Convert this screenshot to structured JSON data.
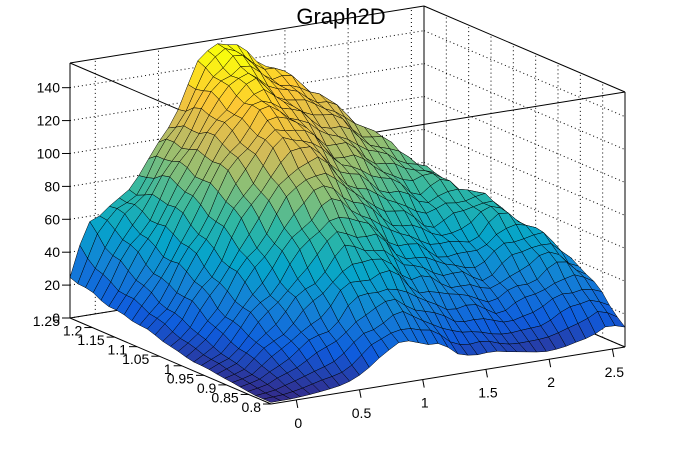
{
  "chart_data": {
    "type": "surface",
    "title": "Graph2D",
    "x_range": [
      -0.2,
      2.6
    ],
    "y_range": [
      0.8,
      1.25
    ],
    "z_range": [
      0,
      155
    ],
    "x_ticks": [
      0,
      0.5,
      1,
      1.5,
      2,
      2.5
    ],
    "y_ticks": [
      0.8,
      0.85,
      0.9,
      0.95,
      1,
      1.05,
      1.1,
      1.15,
      1.2,
      1.25
    ],
    "z_ticks": [
      0,
      20,
      40,
      60,
      80,
      100,
      120,
      140
    ],
    "x_tick_labels": [
      "0",
      "0.5",
      "1",
      "1.5",
      "2",
      "2.5"
    ],
    "y_tick_labels": [
      "0.8",
      "0.85",
      "0.9",
      "0.95",
      "1",
      "1.05",
      "1.1",
      "1.15",
      "1.2",
      "1.25"
    ],
    "z_tick_labels": [
      "0",
      "20",
      "40",
      "60",
      "80",
      "100",
      "120",
      "140"
    ],
    "grid": true,
    "colormap": "parula-like (blue → teal → green → yellow)",
    "colors": [
      "#352a87",
      "#0f5cdd",
      "#1481d6",
      "#06a4ca",
      "#2eb7a4",
      "#87bf77",
      "#d1bb59",
      "#fec832",
      "#f9fb0e"
    ],
    "mesh_line_color": "#000000",
    "grid_z": [
      [
        1,
        1,
        2,
        3,
        5,
        10,
        20,
        24,
        24,
        20,
        12,
        10,
        10,
        8,
        6,
        5,
        6,
        10,
        14,
        12
      ],
      [
        1,
        2,
        5,
        8,
        12,
        18,
        28,
        34,
        34,
        30,
        22,
        18,
        16,
        14,
        12,
        14,
        18,
        22,
        26,
        20
      ],
      [
        2,
        4,
        10,
        16,
        22,
        28,
        38,
        44,
        44,
        40,
        32,
        28,
        26,
        24,
        20,
        24,
        28,
        32,
        36,
        28
      ],
      [
        3,
        6,
        14,
        22,
        30,
        38,
        50,
        56,
        56,
        52,
        42,
        38,
        36,
        32,
        28,
        32,
        38,
        42,
        44,
        36
      ],
      [
        4,
        8,
        18,
        28,
        38,
        48,
        60,
        68,
        66,
        62,
        52,
        48,
        44,
        40,
        36,
        40,
        46,
        52,
        50,
        40
      ],
      [
        5,
        10,
        22,
        34,
        46,
        58,
        72,
        80,
        78,
        72,
        62,
        56,
        52,
        48,
        44,
        48,
        56,
        60,
        54,
        42
      ],
      [
        6,
        12,
        26,
        40,
        54,
        68,
        82,
        92,
        90,
        82,
        72,
        66,
        60,
        56,
        52,
        56,
        64,
        66,
        56,
        42
      ],
      [
        8,
        16,
        30,
        46,
        62,
        78,
        92,
        104,
        102,
        92,
        82,
        76,
        70,
        64,
        60,
        64,
        70,
        68,
        56,
        40
      ],
      [
        10,
        20,
        36,
        52,
        70,
        88,
        102,
        114,
        112,
        102,
        92,
        86,
        80,
        74,
        68,
        72,
        74,
        68,
        52,
        36
      ],
      [
        12,
        24,
        40,
        58,
        78,
        96,
        110,
        122,
        120,
        110,
        100,
        96,
        90,
        82,
        76,
        78,
        76,
        64,
        48,
        30
      ],
      [
        14,
        26,
        44,
        62,
        84,
        102,
        116,
        128,
        126,
        118,
        108,
        104,
        98,
        90,
        84,
        84,
        76,
        60,
        42,
        26
      ],
      [
        16,
        30,
        48,
        66,
        88,
        106,
        120,
        132,
        132,
        124,
        116,
        112,
        106,
        98,
        92,
        88,
        74,
        56,
        36,
        22
      ],
      [
        18,
        34,
        52,
        70,
        90,
        108,
        122,
        136,
        138,
        130,
        122,
        120,
        114,
        106,
        98,
        90,
        70,
        50,
        30,
        18
      ],
      [
        20,
        40,
        56,
        72,
        90,
        108,
        124,
        140,
        144,
        136,
        128,
        126,
        120,
        110,
        100,
        88,
        64,
        42,
        24,
        14
      ],
      [
        22,
        48,
        60,
        72,
        88,
        106,
        124,
        142,
        150,
        142,
        134,
        130,
        122,
        110,
        96,
        80,
        56,
        34,
        18,
        10
      ],
      [
        24,
        56,
        64,
        70,
        84,
        102,
        122,
        144,
        156,
        148,
        138,
        132,
        120,
        104,
        88,
        70,
        46,
        26,
        12,
        6
      ]
    ]
  }
}
